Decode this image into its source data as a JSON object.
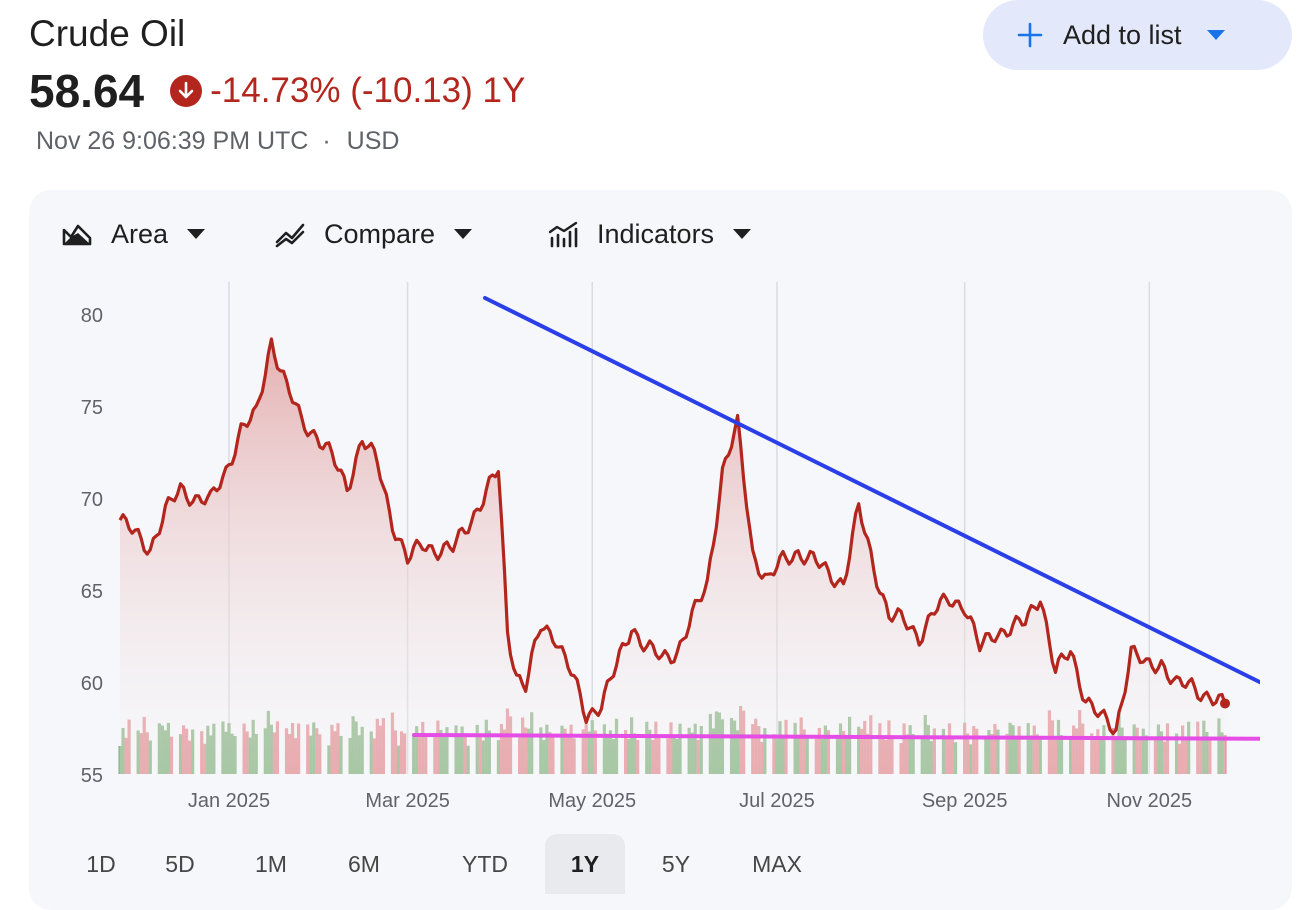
{
  "header": {
    "title": "Crude Oil",
    "price": "58.64",
    "change": "-14.73% (-10.13) 1Y",
    "timestamp": "Nov 26 9:06:39 PM UTC",
    "separator": "·",
    "currency": "USD",
    "add_to_list_label": "Add to list"
  },
  "toolbar": {
    "area_label": "Area",
    "compare_label": "Compare",
    "indicators_label": "Indicators"
  },
  "range": {
    "tabs": [
      "1D",
      "5D",
      "1M",
      "6M",
      "YTD",
      "1Y",
      "5Y",
      "MAX"
    ],
    "active": "1Y"
  },
  "colors": {
    "line": "#b3261e",
    "trend_down": "#2a3fe8",
    "support": "#e64ce6",
    "vol_up": "#93bb8f",
    "vol_down": "#e49a9e",
    "accent": "#1a73e8"
  },
  "chart_data": {
    "type": "area",
    "ylim": [
      55,
      80
    ],
    "y_ticks": [
      "80",
      "75",
      "70",
      "65",
      "60",
      "55"
    ],
    "x_tick_labels": [
      "Jan 2025",
      "Mar 2025",
      "May 2025",
      "Jul 2025",
      "Sep 2025",
      "Nov 2025"
    ],
    "x_ticks": [
      "2025-01-01",
      "2025-03-01",
      "2025-05-01",
      "2025-07-01",
      "2025-09-01",
      "2025-11-01"
    ],
    "x_range": [
      "2024-11-26",
      "2025-11-26"
    ],
    "series": [
      {
        "x": [
          "2024-11-26",
          "2024-12-01",
          "2024-12-06",
          "2024-12-11",
          "2024-12-16",
          "2024-12-21",
          "2024-12-26",
          "2024-12-31",
          "2025-01-05",
          "2025-01-10",
          "2025-01-15",
          "2025-01-20",
          "2025-01-25",
          "2025-01-30",
          "2025-02-04",
          "2025-02-09",
          "2025-02-14",
          "2025-02-19",
          "2025-02-24",
          "2025-03-01",
          "2025-03-06",
          "2025-03-11",
          "2025-03-16",
          "2025-03-21",
          "2025-03-26",
          "2025-03-31",
          "2025-04-03",
          "2025-04-06",
          "2025-04-09",
          "2025-04-14",
          "2025-04-19",
          "2025-04-24",
          "2025-04-29",
          "2025-05-04",
          "2025-05-09",
          "2025-05-14",
          "2025-05-19",
          "2025-05-24",
          "2025-05-29",
          "2025-06-03",
          "2025-06-08",
          "2025-06-13",
          "2025-06-18",
          "2025-06-23",
          "2025-06-28",
          "2025-07-03",
          "2025-07-08",
          "2025-07-13",
          "2025-07-18",
          "2025-07-23",
          "2025-07-28",
          "2025-08-02",
          "2025-08-07",
          "2025-08-12",
          "2025-08-17",
          "2025-08-22",
          "2025-08-27",
          "2025-09-01",
          "2025-09-06",
          "2025-09-11",
          "2025-09-16",
          "2025-09-21",
          "2025-09-26",
          "2025-10-01",
          "2025-10-06",
          "2025-10-11",
          "2025-10-16",
          "2025-10-21",
          "2025-10-26",
          "2025-10-31",
          "2025-11-05",
          "2025-11-10",
          "2025-11-15",
          "2025-11-20",
          "2025-11-26"
        ],
        "y": [
          68.8,
          68.0,
          67.3,
          69.2,
          70.5,
          70.0,
          69.8,
          71.5,
          73.7,
          74.5,
          78.6,
          76.0,
          74.2,
          73.4,
          72.2,
          70.6,
          73.2,
          71.9,
          68.7,
          66.6,
          67.5,
          67.2,
          67.2,
          68.6,
          70.0,
          71.5,
          62.8,
          60.4,
          59.8,
          63.0,
          62.5,
          60.5,
          58.1,
          58.9,
          60.8,
          63.0,
          61.9,
          61.2,
          61.7,
          63.5,
          65.3,
          71.5,
          73.9,
          67.0,
          65.5,
          66.6,
          67.1,
          66.6,
          65.9,
          65.4,
          69.4,
          66.3,
          63.6,
          63.3,
          62.5,
          63.8,
          64.5,
          64.2,
          61.8,
          62.7,
          62.9,
          63.2,
          64.8,
          60.5,
          61.7,
          59.1,
          58.0,
          57.4,
          61.7,
          60.8,
          61.1,
          59.8,
          59.8,
          59.3,
          58.64
        ]
      }
    ],
    "volume_series": {
      "up_color": "green",
      "down_color": "red"
    }
  }
}
